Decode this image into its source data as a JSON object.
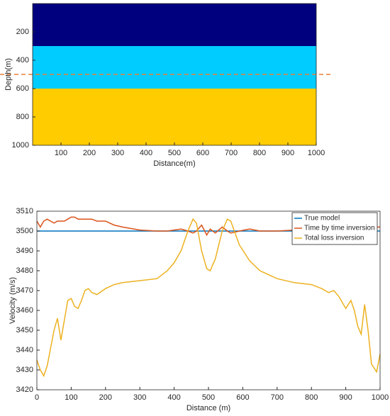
{
  "chart_data": [
    {
      "type": "layers",
      "xlabel": "Distance(m)",
      "ylabel": "Depth(m)",
      "xlim": [
        0,
        1000
      ],
      "ylim": [
        0,
        1000
      ],
      "y_reversed": true,
      "xticks": [
        100,
        200,
        300,
        400,
        500,
        600,
        700,
        800,
        900,
        1000
      ],
      "yticks": [
        200,
        400,
        600,
        800,
        1000
      ],
      "layer_bounds": [
        0,
        300,
        600,
        1000
      ],
      "layer_colors": [
        "#00007f",
        "#00ccff",
        "#ffcc00"
      ],
      "hline": {
        "value": 500,
        "color": "#e8803a"
      }
    },
    {
      "type": "line",
      "xlabel": "Distance (m)",
      "ylabel": "Velocity (m/s)",
      "xlim": [
        0,
        1000
      ],
      "ylim": [
        3420,
        3510
      ],
      "xticks": [
        0,
        100,
        200,
        300,
        400,
        500,
        600,
        700,
        800,
        900,
        1000
      ],
      "yticks": [
        3420,
        3430,
        3440,
        3450,
        3460,
        3470,
        3480,
        3490,
        3500,
        3510
      ],
      "legend": "top right",
      "x": [
        0,
        10,
        20,
        30,
        50,
        60,
        70,
        80,
        90,
        100,
        110,
        120,
        130,
        140,
        150,
        160,
        175,
        200,
        225,
        250,
        300,
        350,
        380,
        400,
        420,
        440,
        455,
        465,
        480,
        495,
        505,
        520,
        540,
        555,
        565,
        590,
        620,
        650,
        700,
        750,
        800,
        830,
        850,
        865,
        880,
        900,
        915,
        925,
        935,
        945,
        955,
        965,
        975,
        990,
        1000
      ],
      "series": [
        {
          "name": "True model",
          "color": "#0072bd",
          "values": [
            3500,
            3500,
            3500,
            3500,
            3500,
            3500,
            3500,
            3500,
            3500,
            3500,
            3500,
            3500,
            3500,
            3500,
            3500,
            3500,
            3500,
            3500,
            3500,
            3500,
            3500,
            3500,
            3500,
            3500,
            3500,
            3500,
            3500,
            3500,
            3500,
            3500,
            3500,
            3500,
            3500,
            3500,
            3500,
            3500,
            3500,
            3500,
            3500,
            3500,
            3500,
            3500,
            3500,
            3500,
            3500,
            3500,
            3500,
            3500,
            3500,
            3500,
            3500,
            3500,
            3500,
            3500,
            3500
          ]
        },
        {
          "name": "Time by time inversion",
          "color": "#d95319",
          "values": [
            3505,
            3502,
            3505,
            3506,
            3504,
            3505,
            3505,
            3505,
            3506,
            3507,
            3507,
            3506,
            3506,
            3506,
            3506,
            3506,
            3505,
            3505,
            3503,
            3502,
            3500.5,
            3500,
            3500,
            3500.5,
            3501,
            3500,
            3499,
            3500,
            3503,
            3498,
            3501,
            3499,
            3502,
            3500,
            3499,
            3500,
            3501,
            3500,
            3500,
            3500.5,
            3501,
            3501,
            3501,
            3501,
            3501,
            3501,
            3501,
            3501,
            3501,
            3501,
            3501,
            3501,
            3502,
            3502,
            3502
          ]
        },
        {
          "name": "Total loss inversion",
          "color": "#edb120",
          "values": [
            3435,
            3430,
            3427,
            3432,
            3450,
            3456,
            3445,
            3455,
            3465,
            3466,
            3462,
            3461,
            3465,
            3470,
            3471,
            3469,
            3468,
            3471,
            3473,
            3474,
            3475,
            3476,
            3480,
            3484,
            3490,
            3500,
            3506,
            3504,
            3490,
            3481,
            3480,
            3486,
            3500,
            3506,
            3505,
            3493,
            3485,
            3480,
            3476,
            3474,
            3473,
            3471,
            3469,
            3470,
            3467,
            3461,
            3465,
            3460,
            3452,
            3448,
            3463,
            3450,
            3433,
            3429,
            3438
          ]
        }
      ]
    }
  ]
}
